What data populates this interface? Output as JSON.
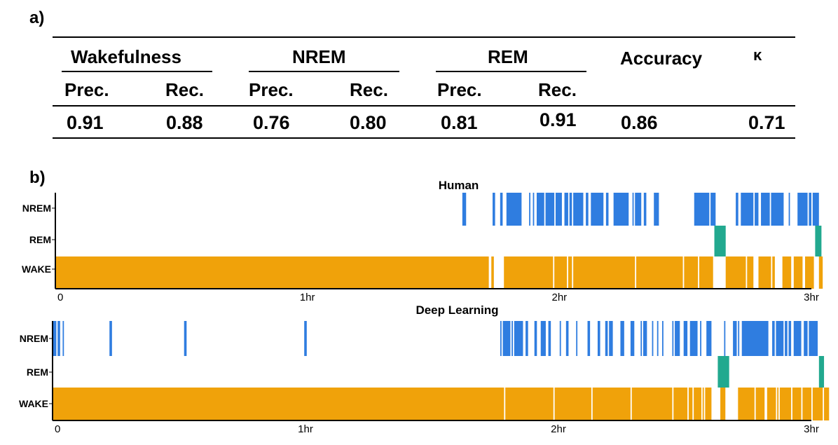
{
  "panel_a": {
    "label": "a)",
    "groups": {
      "wake": "Wakefulness",
      "nrem": "NREM",
      "rem": "REM",
      "accuracy": "Accuracy",
      "kappa": "κ"
    },
    "sub": {
      "prec": "Prec.",
      "rec": "Rec."
    },
    "values": {
      "wake_prec": "0.91",
      "wake_rec": "0.88",
      "nrem_prec": "0.76",
      "nrem_rec": "0.80",
      "rem_prec": "0.81",
      "rem_rec": "0.91",
      "accuracy": "0.86",
      "kappa": "0.71"
    }
  },
  "panel_b": {
    "label": "b)"
  },
  "colors": {
    "wake": "#f0a20a",
    "nrem": "#2f7de0",
    "rem": "#22a98f",
    "axis": "#000000"
  },
  "chart_data": [
    {
      "type": "hypnogram",
      "title": "Human",
      "y_categories": [
        "NREM",
        "REM",
        "WAKE"
      ],
      "x_ticks": [
        {
          "value": 0,
          "label": "0"
        },
        {
          "value": 1,
          "label": "1hr"
        },
        {
          "value": 2,
          "label": "2hr"
        },
        {
          "value": 3,
          "label": "3hr"
        }
      ],
      "xlim": [
        0,
        3
      ],
      "segments": {
        "NREM": [
          [
            1.615,
            1.63
          ],
          [
            1.735,
            1.745
          ],
          [
            1.765,
            1.775
          ],
          [
            1.79,
            1.85
          ],
          [
            1.88,
            1.885
          ],
          [
            1.895,
            1.9
          ],
          [
            1.91,
            1.94
          ],
          [
            1.945,
            1.98
          ],
          [
            1.985,
            2.01
          ],
          [
            2.02,
            2.035
          ],
          [
            2.04,
            2.05
          ],
          [
            2.055,
            2.095
          ],
          [
            2.105,
            2.115
          ],
          [
            2.125,
            2.175
          ],
          [
            2.185,
            2.195
          ],
          [
            2.215,
            2.275
          ],
          [
            2.29,
            2.295
          ],
          [
            2.3,
            2.325
          ],
          [
            2.335,
            2.345
          ],
          [
            2.375,
            2.395
          ],
          [
            2.535,
            2.595
          ],
          [
            2.6,
            2.62
          ],
          [
            2.7,
            2.71
          ],
          [
            2.72,
            2.77
          ],
          [
            2.775,
            2.79
          ],
          [
            2.8,
            2.835
          ],
          [
            2.84,
            2.89
          ],
          [
            2.91,
            2.915
          ],
          [
            2.945,
            2.985
          ],
          [
            2.99,
            3.0
          ],
          [
            3.005,
            3.03
          ]
        ],
        "REM": [
          [
            2.615,
            2.66
          ],
          [
            3.015,
            3.04
          ]
        ],
        "WAKE": [
          [
            0,
            1.72
          ],
          [
            1.73,
            1.74
          ],
          [
            1.78,
            1.975
          ],
          [
            1.98,
            2.03
          ],
          [
            2.035,
            2.05
          ],
          [
            2.055,
            2.3
          ],
          [
            2.305,
            2.49
          ],
          [
            2.495,
            2.55
          ],
          [
            2.555,
            2.61
          ],
          [
            2.66,
            2.74
          ],
          [
            2.745,
            2.77
          ],
          [
            2.79,
            2.84
          ],
          [
            2.845,
            2.855
          ],
          [
            2.885,
            2.92
          ],
          [
            2.93,
            2.965
          ],
          [
            2.975,
            3.01
          ],
          [
            3.03,
            3.045
          ]
        ]
      }
    },
    {
      "type": "hypnogram",
      "title": "Deep Learning",
      "y_categories": [
        "NREM",
        "REM",
        "WAKE"
      ],
      "x_ticks": [
        {
          "value": 0,
          "label": "0"
        },
        {
          "value": 1,
          "label": "1hr"
        },
        {
          "value": 2,
          "label": "2hr"
        },
        {
          "value": 3,
          "label": "3hr"
        }
      ],
      "xlim": [
        0,
        3
      ],
      "segments": {
        "NREM": [
          [
            0.0,
            0.015
          ],
          [
            0.02,
            0.03
          ],
          [
            0.04,
            0.045
          ],
          [
            0.225,
            0.235
          ],
          [
            0.52,
            0.53
          ],
          [
            0.995,
            1.005
          ],
          [
            1.77,
            1.775
          ],
          [
            1.78,
            1.81
          ],
          [
            1.815,
            1.82
          ],
          [
            1.825,
            1.86
          ],
          [
            1.87,
            1.88
          ],
          [
            1.905,
            1.915
          ],
          [
            1.93,
            1.95
          ],
          [
            1.96,
            1.97
          ],
          [
            2.005,
            2.01
          ],
          [
            2.03,
            2.04
          ],
          [
            2.07,
            2.075
          ],
          [
            2.115,
            2.125
          ],
          [
            2.155,
            2.165
          ],
          [
            2.185,
            2.195
          ],
          [
            2.2,
            2.215
          ],
          [
            2.245,
            2.26
          ],
          [
            2.285,
            2.3
          ],
          [
            2.325,
            2.33
          ],
          [
            2.335,
            2.35
          ],
          [
            2.37,
            2.375
          ],
          [
            2.39,
            2.395
          ],
          [
            2.41,
            2.415
          ],
          [
            2.45,
            2.455
          ],
          [
            2.46,
            2.48
          ],
          [
            2.495,
            2.51
          ],
          [
            2.52,
            2.55
          ],
          [
            2.56,
            2.565
          ],
          [
            2.585,
            2.605
          ],
          [
            2.655,
            2.66
          ],
          [
            2.69,
            2.705
          ],
          [
            2.71,
            2.715
          ],
          [
            2.725,
            2.83
          ],
          [
            2.845,
            2.855
          ],
          [
            2.86,
            2.89
          ],
          [
            2.895,
            2.905
          ],
          [
            2.91,
            2.92
          ],
          [
            2.93,
            2.96
          ],
          [
            2.97,
            2.985
          ],
          [
            2.99,
            3.025
          ]
        ],
        "REM": [
          [
            2.63,
            2.675
          ],
          [
            3.03,
            3.05
          ]
        ],
        "WAKE": [
          [
            0,
            1.785
          ],
          [
            1.79,
            1.98
          ],
          [
            1.985,
            2.13
          ],
          [
            2.135,
            2.285
          ],
          [
            2.29,
            2.45
          ],
          [
            2.455,
            2.51
          ],
          [
            2.515,
            2.53
          ],
          [
            2.535,
            2.565
          ],
          [
            2.57,
            2.575
          ],
          [
            2.58,
            2.605
          ],
          [
            2.64,
            2.66
          ],
          [
            2.71,
            2.775
          ],
          [
            2.78,
            2.815
          ],
          [
            2.825,
            2.86
          ],
          [
            2.865,
            2.87
          ],
          [
            2.875,
            2.92
          ],
          [
            2.925,
            2.96
          ],
          [
            2.965,
            3.0
          ],
          [
            3.005,
            3.045
          ],
          [
            3.05,
            3.07
          ]
        ]
      }
    }
  ]
}
